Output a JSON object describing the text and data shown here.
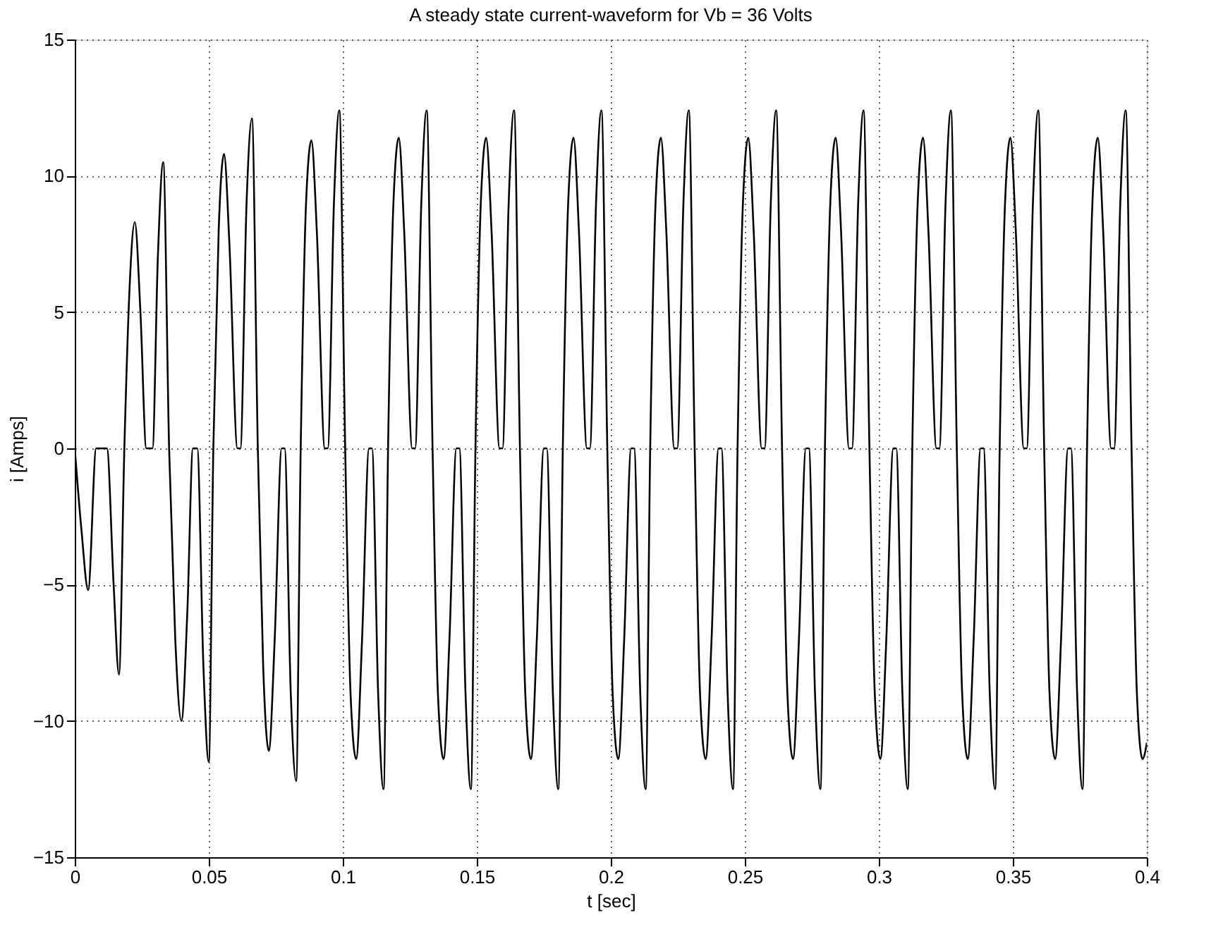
{
  "chart_data": {
    "type": "line",
    "title": "A steady state current-waveform for Vb = 36 Volts",
    "xlabel": "t [sec]",
    "ylabel": "i [Amps]",
    "xlim": [
      0,
      0.4
    ],
    "ylim": [
      -15,
      15
    ],
    "xticks": [
      0,
      0.05,
      0.1,
      0.15,
      0.2,
      0.25,
      0.3,
      0.35,
      0.4
    ],
    "yticks": [
      -15,
      -10,
      -5,
      0,
      5,
      10,
      15
    ],
    "grid": true,
    "legend": false,
    "marker": "none",
    "line_style": "solid",
    "series": [
      {
        "color": "#000000",
        "x": [
          0,
          0.0025,
          0.005,
          0.008,
          0.012,
          0.0145,
          0.0165,
          0.0185,
          0.0205,
          0.0224,
          0.0245,
          0.0267,
          0.029,
          0.031,
          0.033,
          0.0352,
          0.0375,
          0.0398,
          0.042,
          0.0441,
          0.0457,
          0.048,
          0.05,
          0.0517,
          0.0537,
          0.0557,
          0.0577,
          0.0607,
          0.0618,
          0.0641,
          0.0661,
          0.0683,
          0.0703,
          0.0724,
          0.0746,
          0.0772,
          0.0783,
          0.0806,
          0.0826,
          0.0843,
          0.0863,
          0.0883,
          0.0903,
          0.0933,
          0.0944,
          0.0967,
          0.0987,
          0.1009,
          0.1029,
          0.105,
          0.1072,
          0.1098,
          0.1109,
          0.1132,
          0.1152,
          0.1169,
          0.1189,
          0.1209,
          0.1229,
          0.1259,
          0.127,
          0.1293,
          0.1313,
          0.1335,
          0.1355,
          0.1376,
          0.1398,
          0.1424,
          0.1435,
          0.1458,
          0.1478,
          0.1495,
          0.1515,
          0.1535,
          0.1555,
          0.1585,
          0.1596,
          0.1619,
          0.1639,
          0.1661,
          0.1681,
          0.1702,
          0.1724,
          0.175,
          0.1761,
          0.1784,
          0.1804,
          0.1821,
          0.1841,
          0.1861,
          0.1881,
          0.1911,
          0.1922,
          0.1945,
          0.1965,
          0.1987,
          0.2007,
          0.2028,
          0.205,
          0.2076,
          0.2087,
          0.211,
          0.213,
          0.2147,
          0.2167,
          0.2187,
          0.2207,
          0.2237,
          0.2248,
          0.2271,
          0.2291,
          0.2313,
          0.2333,
          0.2354,
          0.2376,
          0.2402,
          0.2413,
          0.2436,
          0.2456,
          0.2473,
          0.2493,
          0.2513,
          0.2533,
          0.2563,
          0.2574,
          0.2597,
          0.2617,
          0.2639,
          0.2659,
          0.268,
          0.2702,
          0.2728,
          0.2739,
          0.2762,
          0.2782,
          0.2799,
          0.2819,
          0.2839,
          0.2859,
          0.2889,
          0.29,
          0.2923,
          0.2943,
          0.2965,
          0.2985,
          0.3006,
          0.3028,
          0.3054,
          0.3065,
          0.3088,
          0.3108,
          0.3125,
          0.3145,
          0.3165,
          0.3185,
          0.3215,
          0.3226,
          0.3249,
          0.3269,
          0.3291,
          0.3311,
          0.3332,
          0.3354,
          0.338,
          0.3391,
          0.3414,
          0.3434,
          0.3451,
          0.3471,
          0.3491,
          0.3511,
          0.3541,
          0.3552,
          0.3575,
          0.3595,
          0.3617,
          0.3637,
          0.3658,
          0.368,
          0.3706,
          0.3717,
          0.374,
          0.376,
          0.3777,
          0.3797,
          0.3817,
          0.3837,
          0.3867,
          0.3878,
          0.3901,
          0.3921,
          0.3943,
          0.3963,
          0.3984,
          0.4
        ],
        "values": [
          0,
          -3,
          -5.2,
          0,
          0,
          -5,
          -8.3,
          0,
          6,
          8.3,
          5,
          0,
          0,
          7,
          10.5,
          0,
          -7,
          -10,
          -6,
          0,
          0,
          -8,
          -11.5,
          0,
          8,
          10.8,
          7.5,
          0,
          0,
          9,
          12.1,
          0,
          -8,
          -11.1,
          -7,
          0,
          0,
          -9,
          -12.2,
          0,
          9,
          11.3,
          8,
          0,
          0,
          9,
          12.4,
          0,
          -9,
          -11.4,
          -7,
          0,
          0,
          -9,
          -12.5,
          0,
          9,
          11.4,
          8,
          0,
          0,
          9,
          12.4,
          0,
          -9,
          -11.4,
          -7,
          0,
          0,
          -9,
          -12.5,
          0,
          9,
          11.4,
          8,
          0,
          0,
          9,
          12.4,
          0,
          -9,
          -11.4,
          -7,
          0,
          0,
          -9,
          -12.5,
          0,
          9,
          11.4,
          8,
          0,
          0,
          9,
          12.4,
          0,
          -9,
          -11.4,
          -7,
          0,
          0,
          -9,
          -12.5,
          0,
          9,
          11.4,
          8,
          0,
          0,
          9,
          12.4,
          0,
          -9,
          -11.4,
          -7,
          0,
          0,
          -9,
          -12.5,
          0,
          9,
          11.4,
          8,
          0,
          0,
          9,
          12.4,
          0,
          -9,
          -11.4,
          -7,
          0,
          0,
          -9,
          -12.5,
          0,
          9,
          11.4,
          8,
          0,
          0,
          9,
          12.4,
          0,
          -9,
          -11.4,
          -7,
          0,
          0,
          -9,
          -12.5,
          0,
          9,
          11.4,
          8,
          0,
          0,
          9,
          12.4,
          0,
          -9,
          -11.4,
          -7,
          0,
          0,
          -9,
          -12.5,
          0,
          9,
          11.4,
          8,
          0,
          0,
          9,
          12.4,
          0,
          -9,
          -11.4,
          -7,
          0,
          0,
          -9,
          -12.5,
          0,
          9,
          11.4,
          8,
          0,
          0,
          9,
          12.4,
          0,
          -9,
          -11.4,
          -10.8
        ]
      }
    ]
  }
}
